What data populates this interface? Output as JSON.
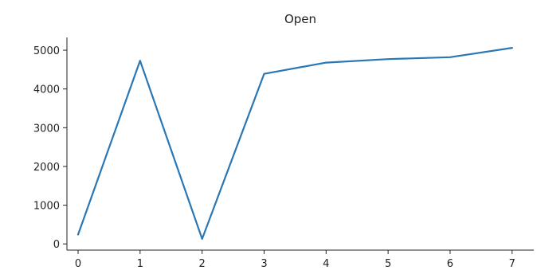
{
  "chart_data": {
    "type": "line",
    "title": "Open",
    "xlabel": "",
    "ylabel": "",
    "x": [
      0,
      1,
      2,
      3,
      4,
      5,
      6,
      7
    ],
    "series": [
      {
        "values": [
          240,
          4730,
          130,
          4390,
          4680,
          4770,
          4820,
          5060
        ],
        "color": "#2a77b4"
      }
    ],
    "xlim": [
      -0.18,
      7.35
    ],
    "ylim": [
      -160,
      5330
    ],
    "xticks": [
      "0",
      "1",
      "2",
      "3",
      "4",
      "5",
      "6",
      "7"
    ],
    "yticks": [
      "0",
      "1000",
      "2000",
      "3000",
      "4000",
      "5000"
    ],
    "ytick_values": [
      0,
      1000,
      2000,
      3000,
      4000,
      5000
    ],
    "grid": false,
    "spines": "left-bottom"
  }
}
